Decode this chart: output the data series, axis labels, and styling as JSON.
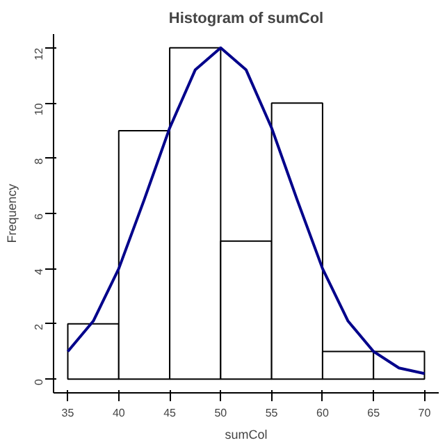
{
  "chart_data": {
    "type": "histogram",
    "title": "Histogram of sumCol",
    "xlabel": "sumCol",
    "ylabel": "Frequency",
    "bins": [
      35,
      40,
      45,
      50,
      55,
      60,
      65,
      70
    ],
    "values": [
      2,
      9,
      12,
      5,
      10,
      1,
      1
    ],
    "color": "#ffffff",
    "series": [
      {
        "type": "line",
        "color": "#00008b",
        "x": [
          35,
          37.5,
          40,
          42.5,
          45,
          47.5,
          50,
          52.5,
          55,
          57.5,
          60,
          62.5,
          65,
          67.5,
          70
        ],
        "values": [
          1.0,
          2.1,
          4.0,
          6.5,
          9.1,
          11.2,
          12.0,
          11.2,
          9.1,
          6.5,
          4.0,
          2.1,
          1.0,
          0.4,
          0.2
        ]
      }
    ],
    "xlim": [
      33.6,
      71.4
    ],
    "ylim": [
      -0.5,
      12.5
    ],
    "xticks": [
      35,
      40,
      45,
      50,
      55,
      60,
      65,
      70
    ],
    "yticks": [
      0,
      2,
      4,
      6,
      8,
      10,
      12
    ],
    "grid": false
  }
}
